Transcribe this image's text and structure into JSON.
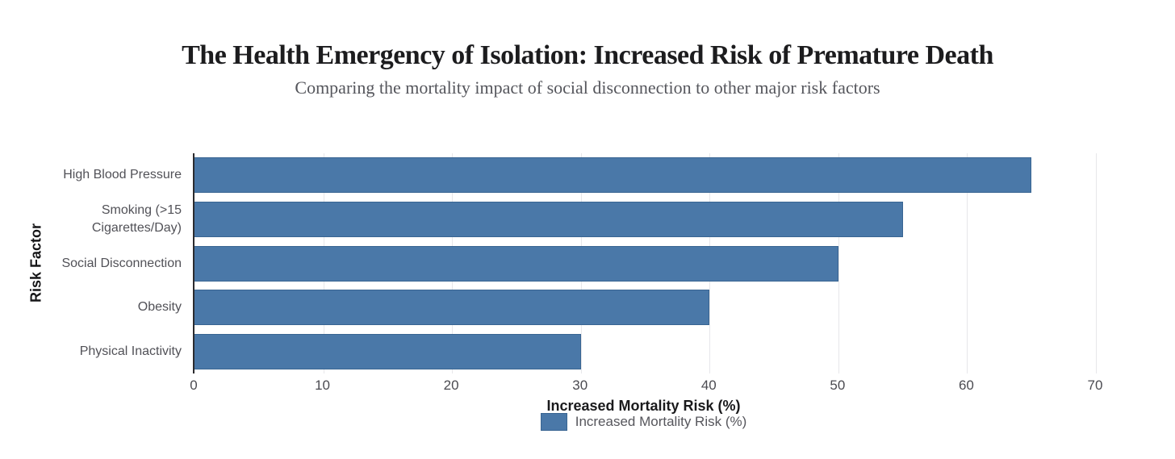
{
  "chart_data": {
    "type": "bar",
    "orientation": "horizontal",
    "title": "The Health Emergency of Isolation: Increased Risk of Premature Death",
    "subtitle": "Comparing the mortality impact of social disconnection to other major risk factors",
    "categories": [
      "High Blood Pressure",
      "Smoking (>15 Cigarettes/Day)",
      "Social Disconnection",
      "Obesity",
      "Physical Inactivity"
    ],
    "series": [
      {
        "name": "Increased Mortality Risk (%)",
        "values": [
          65,
          55,
          50,
          40,
          30
        ]
      }
    ],
    "xlabel": "Increased Mortality Risk (%)",
    "ylabel": "Risk Factor",
    "xlim": [
      0,
      70
    ],
    "xticks": [
      0,
      10,
      20,
      30,
      40,
      50,
      60,
      70
    ],
    "grid": true,
    "legend_position": "bottom",
    "colors": {
      "bar_fill": "#4a78a8",
      "bar_border": "#396592",
      "grid_line": "#e7e7ea",
      "axis_line": "#2b2b2e"
    }
  }
}
